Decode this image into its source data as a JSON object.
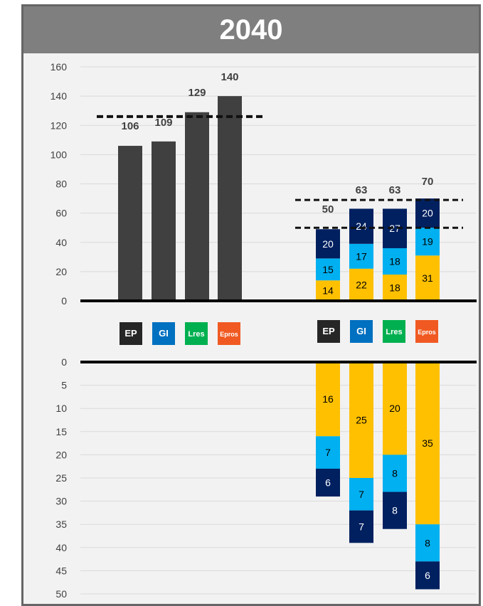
{
  "title": "2040",
  "legend": [
    {
      "label": "EP",
      "color": "#262626"
    },
    {
      "label": "GI",
      "color": "#0070c0"
    },
    {
      "label": "Lres",
      "color": "#00b050"
    },
    {
      "label": "Epros",
      "color": "#f05a22"
    }
  ],
  "colors": {
    "dark_bar": "#404040",
    "navy": "#002060",
    "light_blue": "#00b0f0",
    "yellow": "#ffc000",
    "grid": "#d9d9d9"
  },
  "chart_data": [
    {
      "type": "bar",
      "panel": "upper-left",
      "categories": [
        "EP",
        "GI",
        "Lres",
        "Epros"
      ],
      "values": [
        106,
        109,
        129,
        140
      ],
      "data_labels": [
        "106",
        "109",
        "129",
        "140"
      ],
      "reference_line": 126,
      "ylim": [
        0,
        160
      ],
      "yticks": [
        "0",
        "20",
        "40",
        "60",
        "80",
        "100",
        "120",
        "140",
        "160"
      ],
      "grid": true
    },
    {
      "type": "bar",
      "stacked": true,
      "panel": "upper-right",
      "categories": [
        "EP",
        "GI",
        "Lres",
        "Epros"
      ],
      "series": [
        {
          "color": "yellow",
          "values": [
            14,
            22,
            18,
            31
          ]
        },
        {
          "color": "light_blue",
          "values": [
            15,
            17,
            18,
            19
          ]
        },
        {
          "color": "navy",
          "values": [
            20,
            24,
            27,
            20
          ]
        }
      ],
      "totals": [
        "50",
        "63",
        "63",
        "70"
      ],
      "reference_lines": [
        50,
        69
      ],
      "ylim": [
        0,
        160
      ]
    },
    {
      "type": "bar",
      "stacked": true,
      "panel": "lower-right",
      "direction": "downward",
      "categories": [
        "EP",
        "GI",
        "Lres",
        "Epros"
      ],
      "series": [
        {
          "color": "yellow",
          "values": [
            16,
            25,
            20,
            35
          ]
        },
        {
          "color": "light_blue",
          "values": [
            7,
            7,
            8,
            8
          ]
        },
        {
          "color": "navy",
          "values": [
            6,
            7,
            8,
            6
          ]
        }
      ],
      "ylim": [
        0,
        50
      ],
      "yticks": [
        "0",
        "5",
        "10",
        "15",
        "20",
        "25",
        "30",
        "35",
        "40",
        "45",
        "50"
      ],
      "grid": true
    }
  ]
}
